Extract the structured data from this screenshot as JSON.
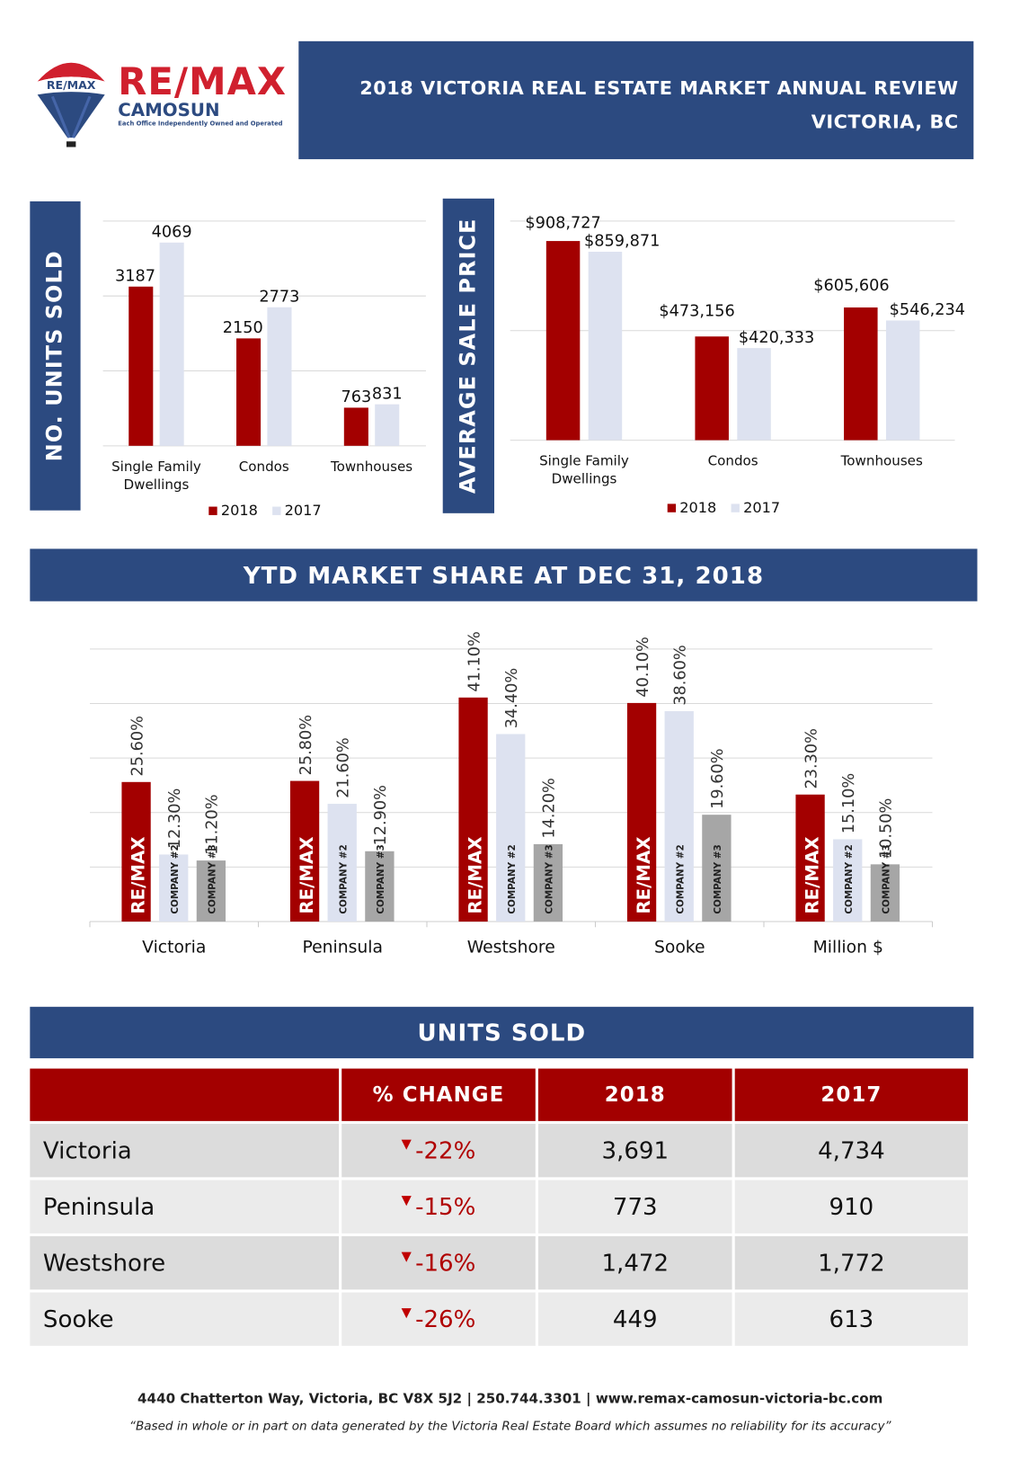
{
  "logo": {
    "balloon_text": "RE/MAX",
    "brand": "RE/MAX",
    "office": "CAMOSUN",
    "tagline": "Each Office Independently Owned and Operated"
  },
  "header": {
    "title": "2018 VICTORIA REAL ESTATE MARKET ANNUAL REVIEW",
    "location": "VICTORIA, BC"
  },
  "colors": {
    "navy": "#2c4a80",
    "red": "#a30000",
    "light": "#dde2f0",
    "grey": "#a6a6a6"
  },
  "chart_data": [
    {
      "type": "bar",
      "title": "NO. UNITS SOLD",
      "categories": [
        [
          "Single Family",
          "Dwellings"
        ],
        [
          "Condos"
        ],
        [
          "Townhouses"
        ]
      ],
      "series": [
        {
          "name": "2018",
          "values": [
            3187,
            2150,
            763
          ],
          "labels": [
            "3187",
            "2150",
            "763"
          ]
        },
        {
          "name": "2017",
          "values": [
            4069,
            2773,
            831
          ],
          "labels": [
            "4069",
            "2773",
            "831"
          ]
        }
      ],
      "ylim": [
        0,
        4500
      ],
      "gridstep": 1500,
      "legend": "bottom"
    },
    {
      "type": "bar",
      "title": "AVERAGE SALE PRICE",
      "categories": [
        [
          "Single Family",
          "Dwellings"
        ],
        [
          "Condos"
        ],
        [
          "Townhouses"
        ]
      ],
      "series": [
        {
          "name": "2018",
          "values": [
            908727,
            473156,
            605606
          ],
          "labels": [
            "$908,727",
            "$473,156",
            "$605,606"
          ]
        },
        {
          "name": "2017",
          "values": [
            859871,
            420333,
            546234
          ],
          "labels": [
            "$859,871",
            "$420,333",
            "$546,234"
          ]
        }
      ],
      "ylim": [
        0,
        1000000
      ],
      "gridstep": 500000,
      "legend": "bottom"
    },
    {
      "type": "bar",
      "title": "YTD MARKET SHARE AT DEC 31, 2018",
      "categories": [
        "Victoria",
        "Peninsula",
        "Westshore",
        "Sooke",
        "Million $"
      ],
      "series": [
        {
          "name": "RE/MAX",
          "values": [
            25.6,
            25.8,
            41.1,
            40.1,
            23.3
          ]
        },
        {
          "name": "COMPANY #2",
          "values": [
            12.3,
            21.6,
            34.4,
            38.6,
            15.1
          ]
        },
        {
          "name": "COMPANY #3",
          "values": [
            11.2,
            12.9,
            14.2,
            19.6,
            10.5
          ]
        }
      ],
      "value_format": "%",
      "ylim": [
        0,
        50
      ],
      "gridstep": 10
    }
  ],
  "units_table": {
    "title": "UNITS SOLD",
    "headers": [
      "",
      "% CHANGE",
      "2018",
      "2017"
    ],
    "rows": [
      {
        "area": "Victoria",
        "change": "-22%",
        "y2018": "3,691",
        "y2017": "4,734"
      },
      {
        "area": "Peninsula",
        "change": "-15%",
        "y2018": "773",
        "y2017": "910"
      },
      {
        "area": "Westshore",
        "change": "-16%",
        "y2018": "1,472",
        "y2017": "1,772"
      },
      {
        "area": "Sooke",
        "change": "-26%",
        "y2018": "449",
        "y2017": "613"
      }
    ]
  },
  "footer": {
    "contact": "4440 Chatterton Way, Victoria, BC V8X 5J2 | 250.744.3301 | www.remax-camosun-victoria-bc.com",
    "disclaimer": "“Based in whole or in part on data generated by the Victoria Real Estate Board which assumes no reliability for its accuracy”"
  }
}
